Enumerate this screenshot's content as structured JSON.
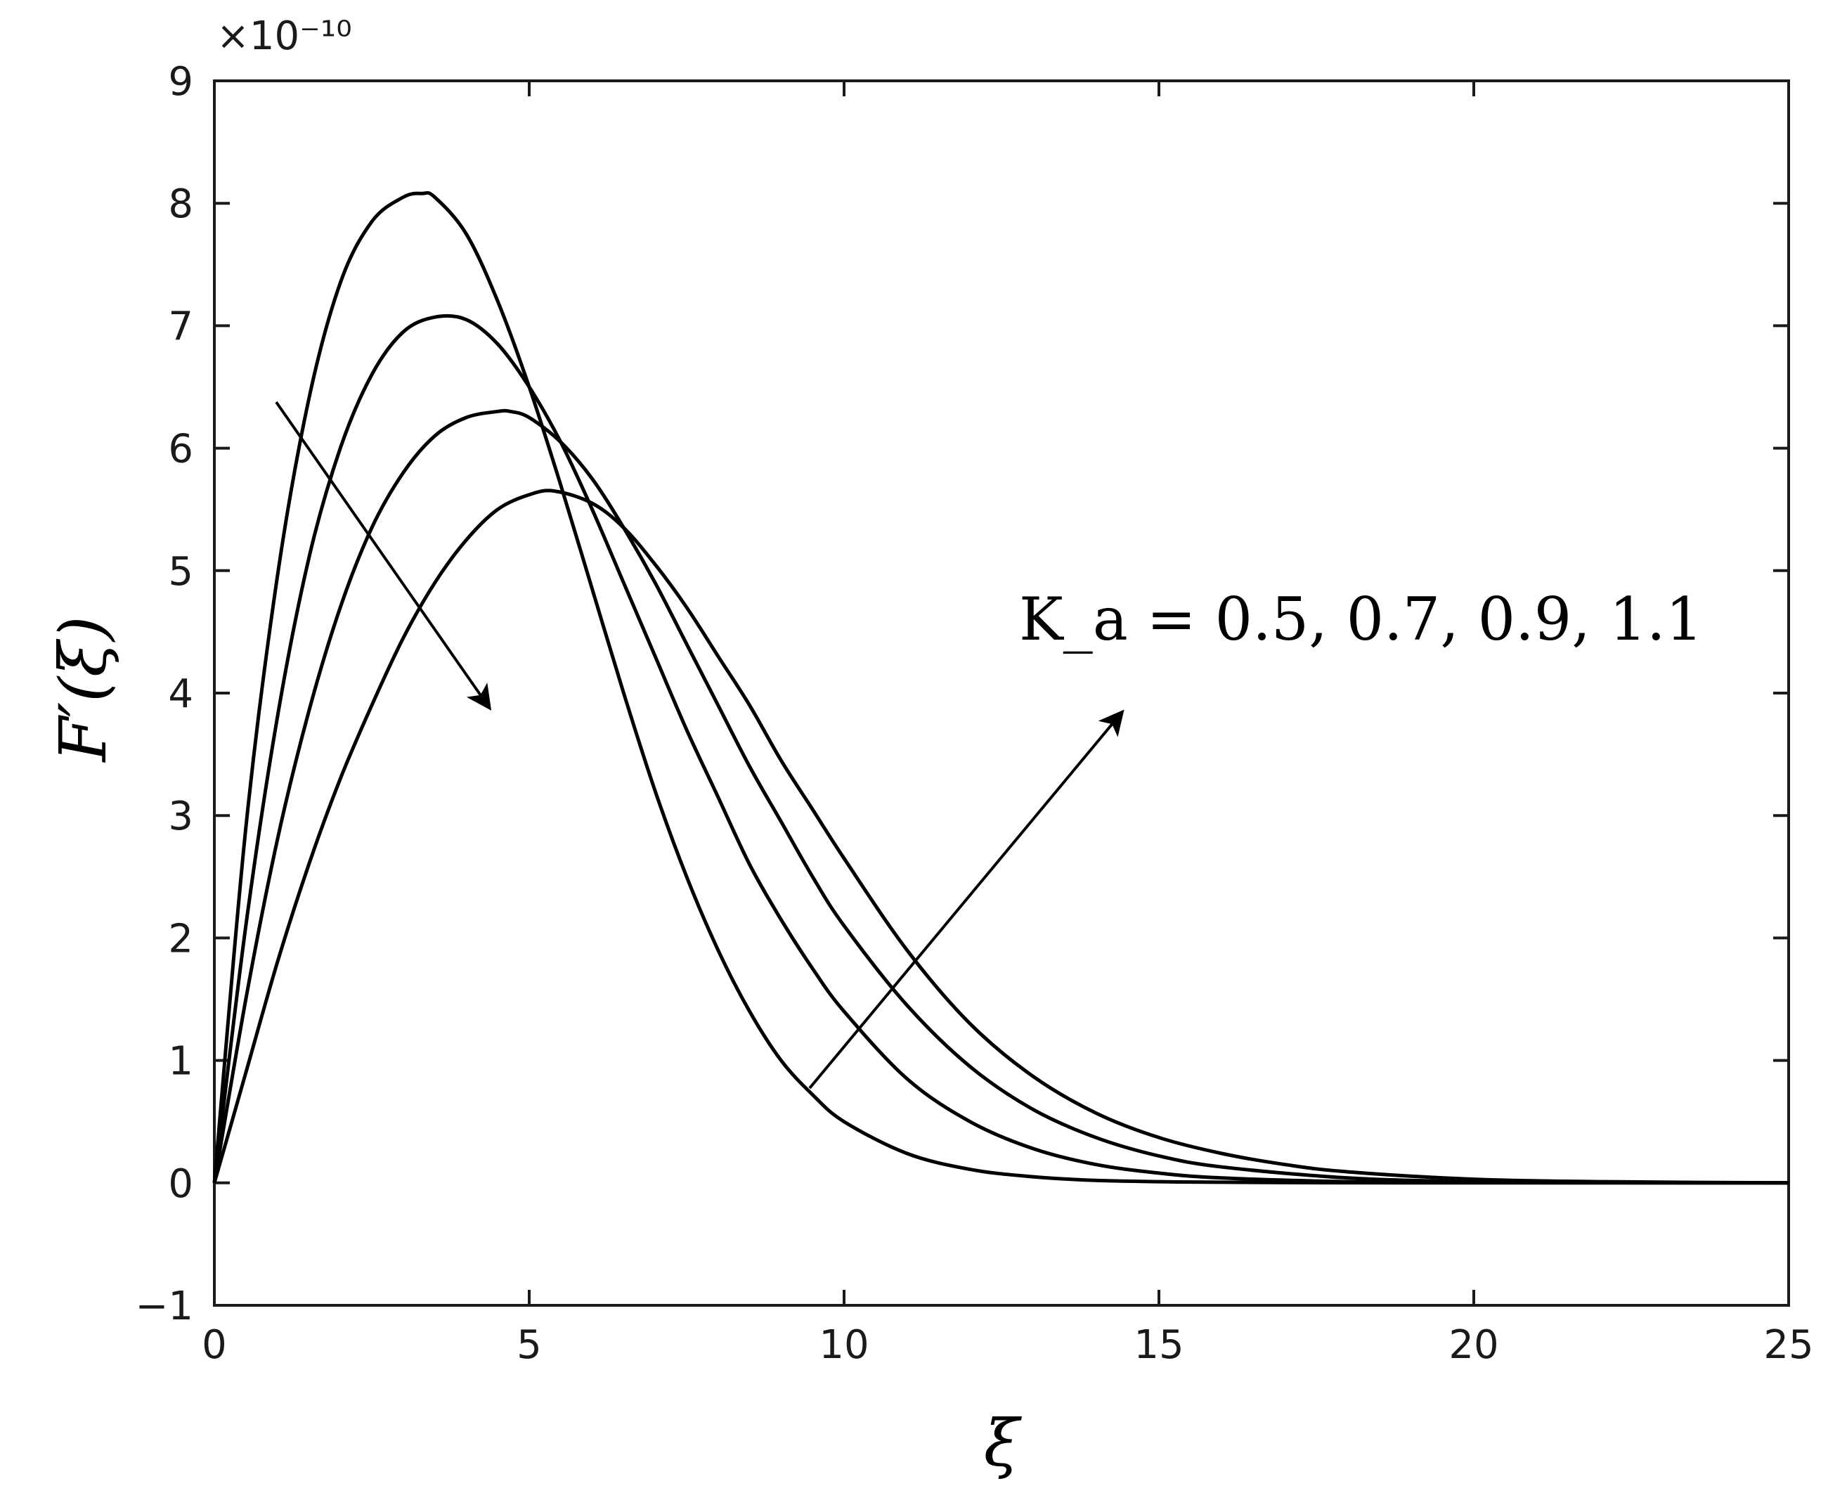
{
  "chart_data": {
    "type": "line",
    "xlabel": "ξ",
    "ylabel": "F′(ξ)",
    "y_exponent": "×10⁻¹⁰",
    "xlim": [
      0,
      25
    ],
    "ylim": [
      -1,
      9
    ],
    "xticks": [
      0,
      5,
      10,
      15,
      20,
      25
    ],
    "yticks": [
      -1,
      0,
      1,
      2,
      3,
      4,
      5,
      6,
      7,
      8,
      9
    ],
    "grid": false,
    "annotation": "K_a = 0.5, 0.7, 0.9, 1.1",
    "series": [
      {
        "x": [
          0,
          0.5,
          1,
          1.5,
          2,
          2.5,
          3,
          3.3,
          3.5,
          4,
          4.5,
          5,
          5.5,
          6,
          6.5,
          7,
          7.5,
          8,
          8.5,
          9,
          9.5,
          10,
          11,
          12,
          13,
          14,
          15,
          16,
          18,
          20,
          22,
          25
        ],
        "y": [
          0,
          2.9,
          4.95,
          6.4,
          7.35,
          7.85,
          8.05,
          8.08,
          8.05,
          7.75,
          7.2,
          6.5,
          5.7,
          4.85,
          4.0,
          3.2,
          2.5,
          1.9,
          1.4,
          1.0,
          0.72,
          0.5,
          0.24,
          0.11,
          0.05,
          0.02,
          0.01,
          0.005,
          0.001,
          0,
          0,
          0
        ]
      },
      {
        "x": [
          0,
          0.5,
          1,
          1.5,
          2,
          2.5,
          3,
          3.5,
          4,
          4.5,
          5,
          5.5,
          6,
          6.5,
          7,
          7.5,
          8,
          8.5,
          9,
          9.5,
          10,
          11,
          12,
          13,
          14,
          15,
          16,
          18,
          20,
          22,
          25
        ],
        "y": [
          0,
          2.1,
          3.8,
          5.1,
          6.0,
          6.6,
          6.95,
          7.07,
          7.05,
          6.85,
          6.5,
          6.05,
          5.5,
          4.9,
          4.3,
          3.7,
          3.15,
          2.6,
          2.15,
          1.75,
          1.4,
          0.85,
          0.5,
          0.28,
          0.15,
          0.08,
          0.04,
          0.01,
          0.003,
          0.001,
          0
        ]
      },
      {
        "x": [
          0,
          0.5,
          1,
          1.5,
          2,
          2.5,
          3,
          3.5,
          4,
          4.5,
          4.7,
          5,
          5.5,
          6,
          6.5,
          7,
          7.5,
          8,
          8.5,
          9,
          9.5,
          10,
          11,
          12,
          13,
          14,
          15,
          16,
          18,
          20,
          22,
          25
        ],
        "y": [
          0,
          1.5,
          2.8,
          3.85,
          4.7,
          5.35,
          5.8,
          6.1,
          6.25,
          6.3,
          6.3,
          6.25,
          6.05,
          5.75,
          5.35,
          4.9,
          4.4,
          3.9,
          3.4,
          2.95,
          2.5,
          2.1,
          1.45,
          0.95,
          0.6,
          0.37,
          0.22,
          0.13,
          0.04,
          0.01,
          0.003,
          0
        ]
      },
      {
        "x": [
          0,
          0.5,
          1,
          1.5,
          2,
          2.5,
          3,
          3.5,
          4,
          4.5,
          5,
          5.4,
          6,
          6.5,
          7,
          7.5,
          8,
          8.5,
          9,
          9.5,
          10,
          11,
          12,
          13,
          14,
          15,
          16,
          17,
          18,
          20,
          22,
          25
        ],
        "y": [
          0,
          0.9,
          1.8,
          2.6,
          3.3,
          3.9,
          4.45,
          4.9,
          5.25,
          5.5,
          5.62,
          5.65,
          5.55,
          5.35,
          5.05,
          4.7,
          4.3,
          3.9,
          3.45,
          3.05,
          2.65,
          1.9,
          1.3,
          0.87,
          0.57,
          0.37,
          0.24,
          0.15,
          0.09,
          0.03,
          0.01,
          0
        ]
      }
    ]
  }
}
